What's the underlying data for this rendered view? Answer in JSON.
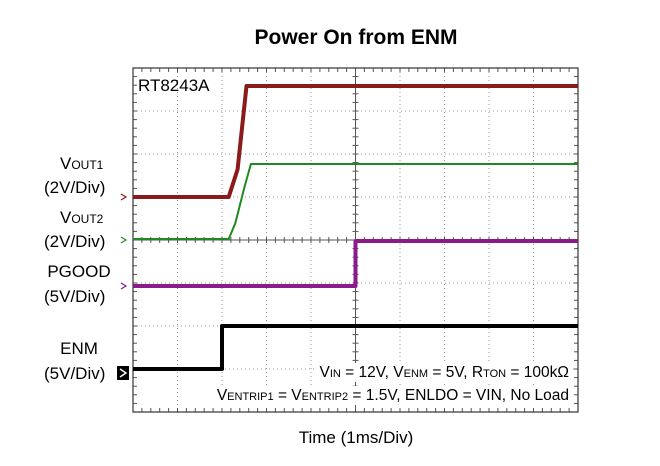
{
  "chart_data": {
    "type": "line",
    "title": "Power On from ENM",
    "device": "RT8243A",
    "xlabel": "Time (1ms/Div)",
    "x_divisions": 10,
    "y_divisions": 8,
    "grid": true,
    "channels": [
      {
        "name_main": "V",
        "name_sub": "OUT1",
        "scale": "(2V/Div)",
        "color": "#8b1a1a",
        "points": [
          [
            0,
            2.9
          ],
          [
            2.15,
            2.9
          ],
          [
            2.35,
            3.5
          ],
          [
            2.55,
            5.3
          ],
          [
            10,
            5.3
          ]
        ]
      },
      {
        "name_main": "V",
        "name_sub": "OUT2",
        "scale": "(2V/Div)",
        "color": "#1f8a1f",
        "points": [
          [
            0,
            2.0
          ],
          [
            2.15,
            2.0
          ],
          [
            2.3,
            2.4
          ],
          [
            2.5,
            3.3
          ],
          [
            2.65,
            3.9
          ],
          [
            10,
            3.9
          ]
        ]
      },
      {
        "name_main": "PGOOD",
        "name_sub": "",
        "scale": "(5V/Div)",
        "color": "#8b1a8b",
        "points": [
          [
            0,
            0.0
          ],
          [
            5.0,
            0.0
          ],
          [
            5.0,
            1.0
          ],
          [
            10,
            1.0
          ]
        ]
      },
      {
        "name_main": "ENM",
        "name_sub": "",
        "scale": "(5V/Div)",
        "color": "#000000",
        "points": [
          [
            0,
            0.0
          ],
          [
            2.0,
            0.0
          ],
          [
            2.0,
            1.0
          ],
          [
            10,
            1.0
          ]
        ]
      }
    ],
    "annotations": {
      "line1": [
        {
          "t": "V"
        },
        {
          "t": "IN",
          "sub": true
        },
        {
          "t": " = 12V, V"
        },
        {
          "t": "ENM",
          "sub": true
        },
        {
          "t": " = 5V, R"
        },
        {
          "t": "TON",
          "sub": true
        },
        {
          "t": " = 100kΩ"
        }
      ],
      "line2": [
        {
          "t": "V"
        },
        {
          "t": "ENTRIP1",
          "sub": true
        },
        {
          "t": " = V"
        },
        {
          "t": "ENTRIP2",
          "sub": true
        },
        {
          "t": " = 1.5V, ENLDO = VIN, No Load"
        }
      ]
    }
  }
}
